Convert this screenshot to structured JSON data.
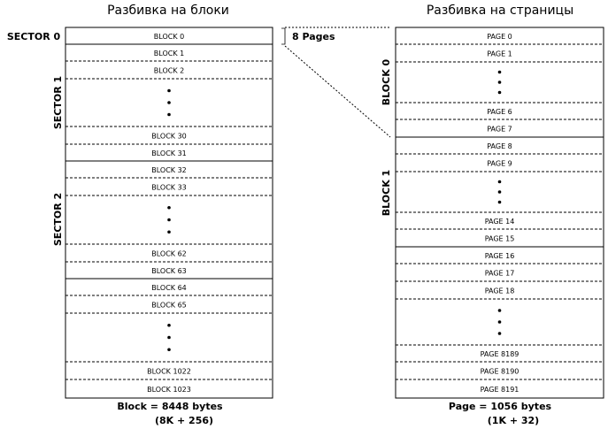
{
  "left": {
    "title": "Разбивка на блоки",
    "blocks": [
      "BLOCK 0",
      "BLOCK 1",
      "BLOCK 2",
      "BLOCK 30",
      "BLOCK 31",
      "BLOCK 32",
      "BLOCK 33",
      "BLOCK 62",
      "BLOCK 63",
      "BLOCK 64",
      "BLOCK 65",
      "BLOCK 1022",
      "BLOCK 1023"
    ],
    "sectors": [
      "SECTOR 0",
      "SECTOR 1",
      "SECTOR 2"
    ],
    "caption": "Block = 8448 bytes",
    "caption_sub": "(8K + 256)"
  },
  "right": {
    "title": "Разбивка на страницы",
    "pages": [
      "PAGE 0",
      "PAGE 1",
      "PAGE 6",
      "PAGE 7",
      "PAGE 8",
      "PAGE 9",
      "PAGE 14",
      "PAGE 15",
      "PAGE 16",
      "PAGE 17",
      "PAGE 18",
      "PAGE 8189",
      "PAGE 8190",
      "PAGE 8191"
    ],
    "groups": [
      "BLOCK 0",
      "BLOCK 1"
    ],
    "caption": "Page = 1056 bytes",
    "caption_sub": "(1K + 32)"
  },
  "bracket_label": "8 Pages"
}
